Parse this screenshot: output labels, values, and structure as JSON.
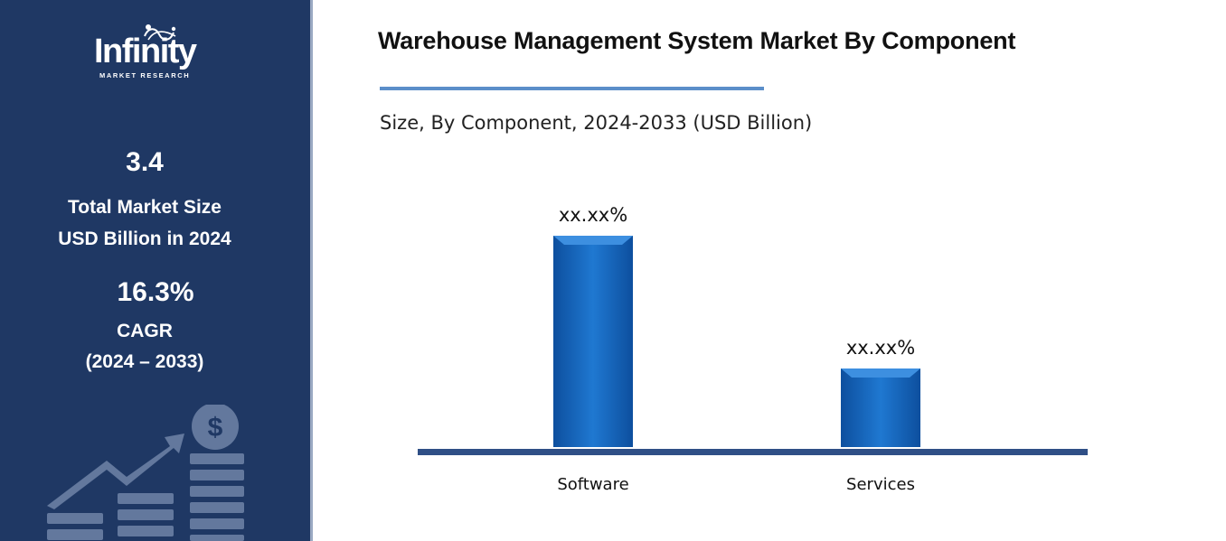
{
  "sidebar": {
    "logo": {
      "name": "Infinity",
      "tagline": "MARKET RESEARCH"
    },
    "stats": {
      "market_size_value": "3.4",
      "market_size_label_1": "Total Market Size",
      "market_size_label_2": "USD Billion in 2024",
      "cagr_value": "16.3%",
      "cagr_label": "CAGR",
      "cagr_period": "(2024 – 2033)"
    },
    "decoration_icon": "growth-chart-dollar-icon"
  },
  "header": {
    "title": "Warehouse Management System Market By Component",
    "subtitle": "Size, By Component, 2024-2033 (USD Billion)"
  },
  "colors": {
    "sidebar_bg": "#1f3864",
    "bar": "#1565c0",
    "bar_light": "#3d8fe0",
    "axis": "#2f4f86",
    "title_underline": "#5b8ec9"
  },
  "chart_data": {
    "type": "bar",
    "categories": [
      "Software",
      "Services"
    ],
    "values": [
      78,
      29
    ],
    "data_labels": [
      "xx.xx%",
      "xx.xx%"
    ],
    "ylim": [
      0,
      100
    ],
    "grid": false,
    "legend": "none",
    "title": "Warehouse Management System Market By Component",
    "subtitle": "Size, By Component, 2024-2033 (USD Billion)",
    "xlabel": "",
    "ylabel": ""
  }
}
